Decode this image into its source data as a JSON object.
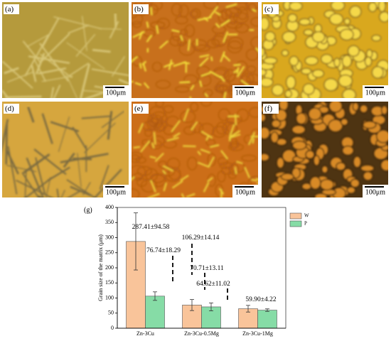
{
  "panels": [
    {
      "label": "(a)",
      "scale_bar": "100μm"
    },
    {
      "label": "(b)",
      "scale_bar": "100μm"
    },
    {
      "label": "(c)",
      "scale_bar": "100μm"
    },
    {
      "label": "(d)",
      "scale_bar": "100μm"
    },
    {
      "label": "(e)",
      "scale_bar": "100μm"
    },
    {
      "label": "(f)",
      "scale_bar": "100μm"
    }
  ],
  "chart_data": {
    "type": "bar",
    "panel_label": "(g)",
    "y_label": "Grain size of the matrix (μm)",
    "categories": [
      "Zn-3Cu",
      "Zn-3Cu-0.5Mg",
      "Zn-3Cu-1Mg"
    ],
    "series": [
      {
        "name": "W",
        "color": "#f9c49a",
        "values": [
          287.41,
          76.74,
          64.62
        ],
        "errors": [
          94.58,
          18.29,
          11.02
        ],
        "value_labels": [
          "287.41±94.58",
          "76.74±18.29",
          "64.62±11.02"
        ]
      },
      {
        "name": "P",
        "color": "#86dca6",
        "values": [
          106.29,
          70.71,
          59.9
        ],
        "errors": [
          14.14,
          13.11,
          4.22
        ],
        "value_labels": [
          "106.29±14.14",
          "70.71±13.11",
          "59.90±4.22"
        ]
      }
    ],
    "ylim": [
      0,
      400
    ],
    "yticks": [
      0,
      50,
      100,
      150,
      200,
      250,
      300,
      350,
      400
    ],
    "legend": "upper right"
  }
}
